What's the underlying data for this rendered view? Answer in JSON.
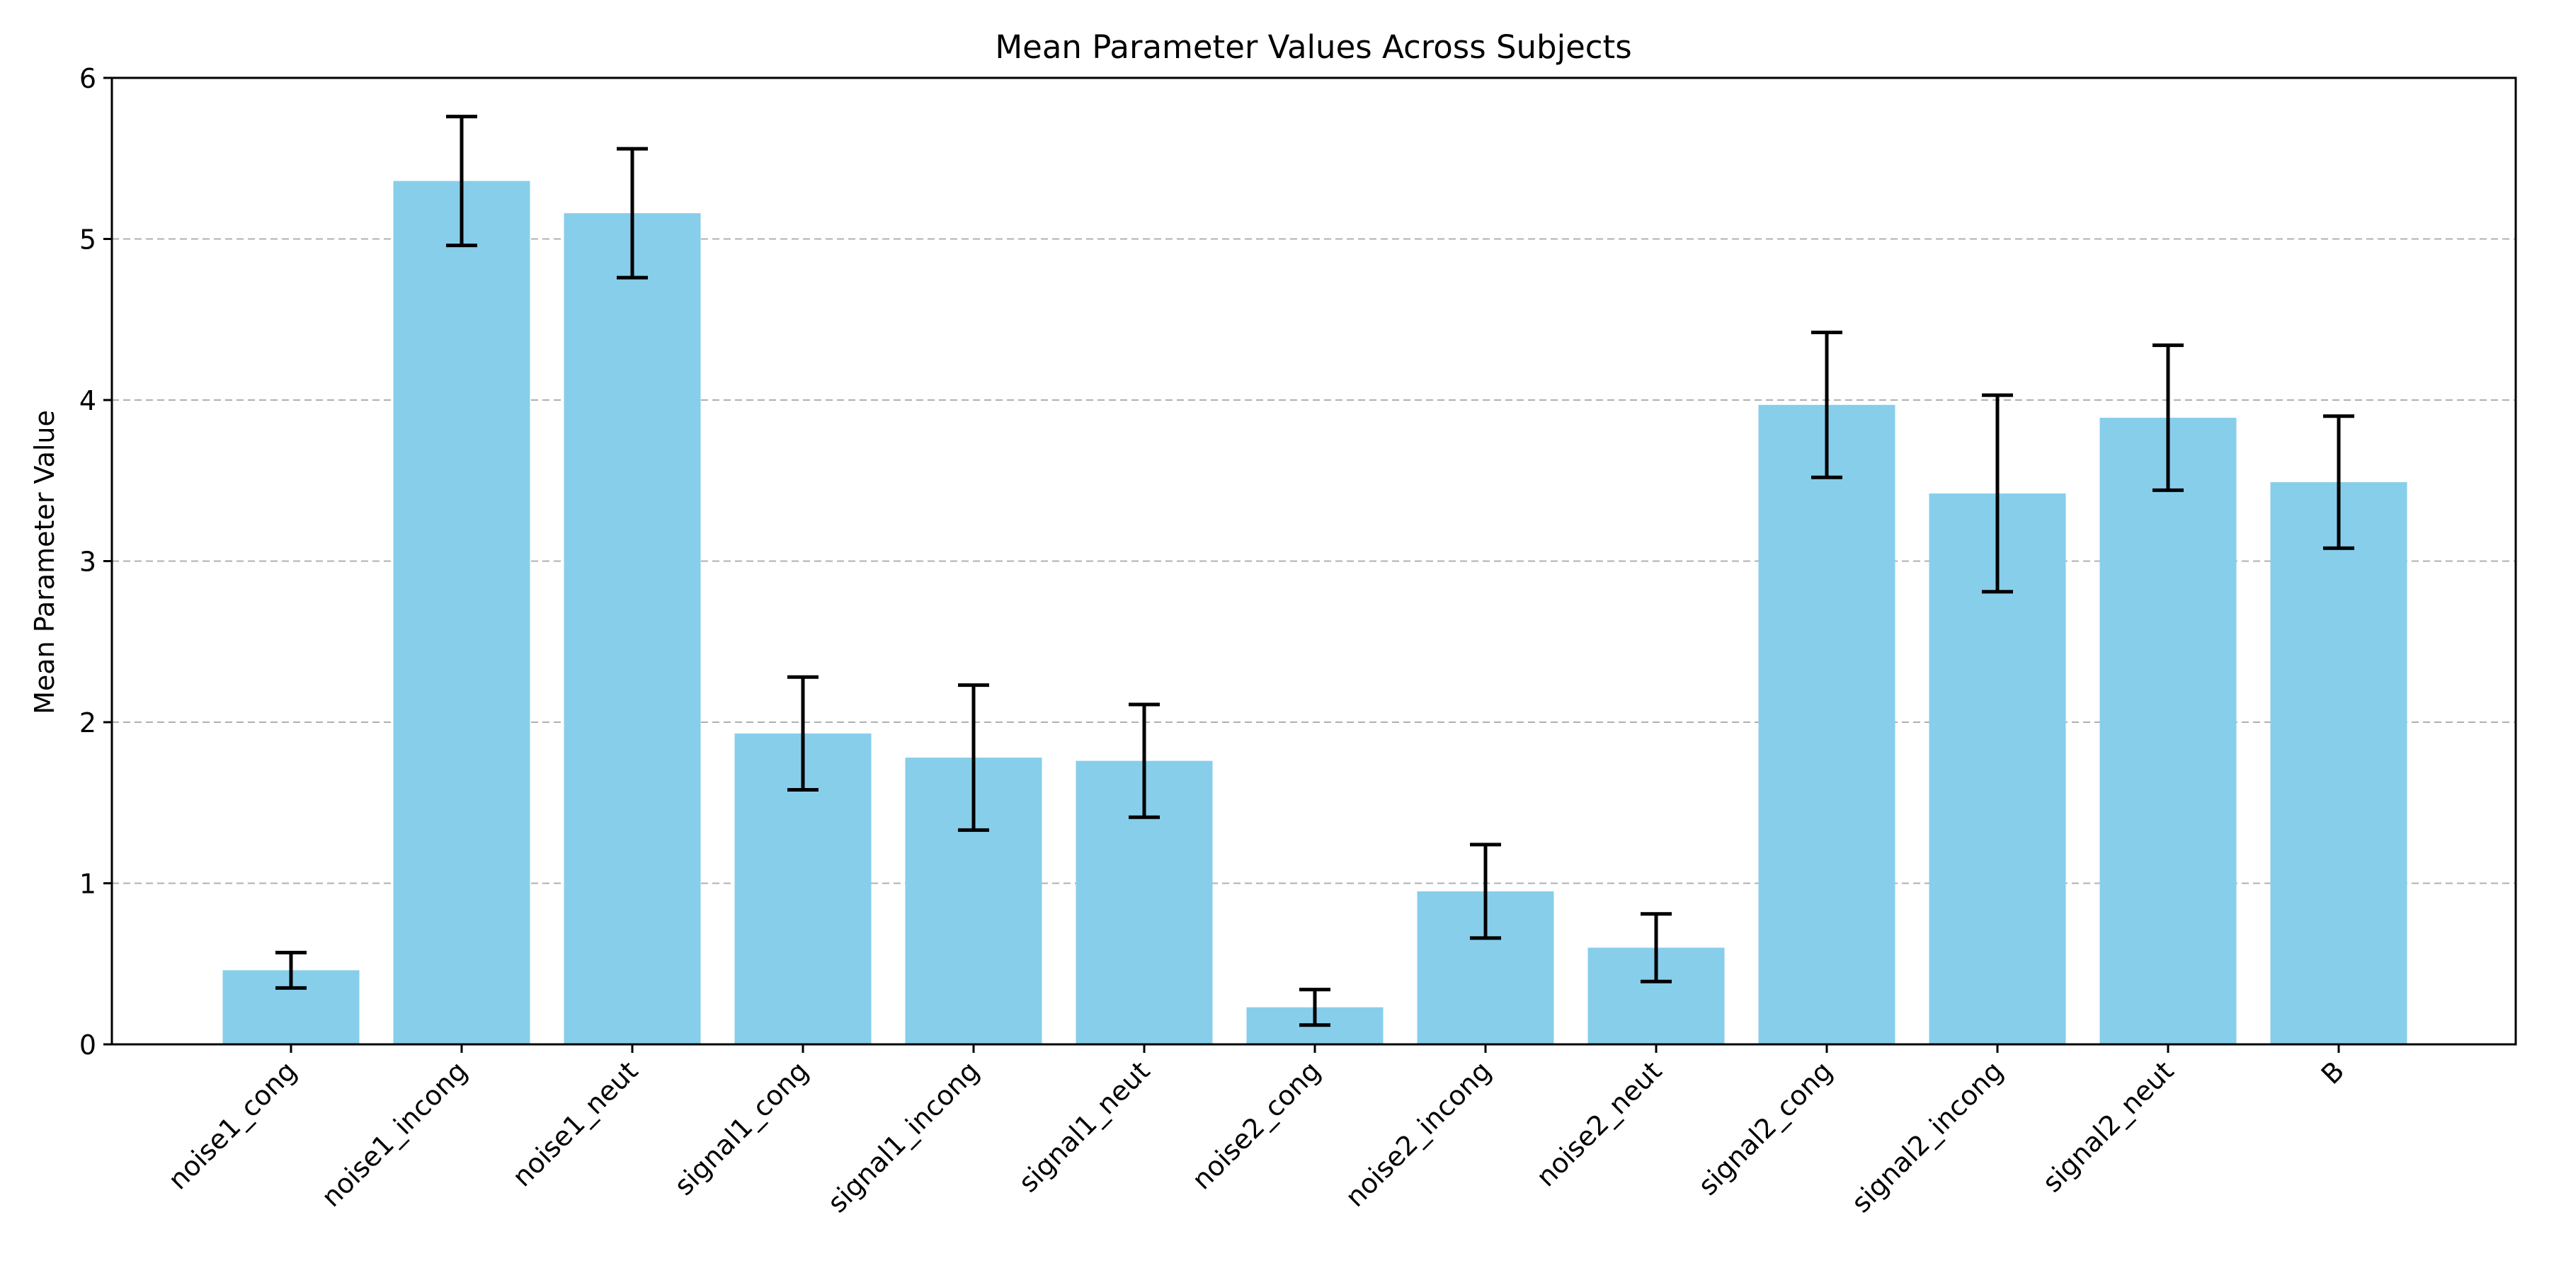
{
  "chart_data": {
    "type": "bar",
    "title": "Mean Parameter Values Across Subjects",
    "xlabel": "",
    "ylabel": "Mean Parameter Value",
    "categories": [
      "noise1_cong",
      "noise1_incong",
      "noise1_neut",
      "signal1_cong",
      "signal1_incong",
      "signal1_neut",
      "noise2_cong",
      "noise2_incong",
      "noise2_neut",
      "signal2_cong",
      "signal2_incong",
      "signal2_neut",
      "B"
    ],
    "values": [
      0.46,
      5.36,
      5.16,
      1.93,
      1.78,
      1.76,
      0.23,
      0.95,
      0.6,
      3.97,
      3.42,
      3.89,
      3.49
    ],
    "errors": [
      0.11,
      0.4,
      0.4,
      0.35,
      0.45,
      0.35,
      0.11,
      0.29,
      0.21,
      0.45,
      0.61,
      0.45,
      0.41
    ],
    "ylim": [
      0,
      6
    ],
    "yticks": [
      "0",
      "1",
      "2",
      "3",
      "4",
      "5",
      "6"
    ],
    "grid": "y-dashed",
    "colors": {
      "bar": "#87CEEB",
      "error": "#000000",
      "grid": "#b0b0b0"
    }
  }
}
